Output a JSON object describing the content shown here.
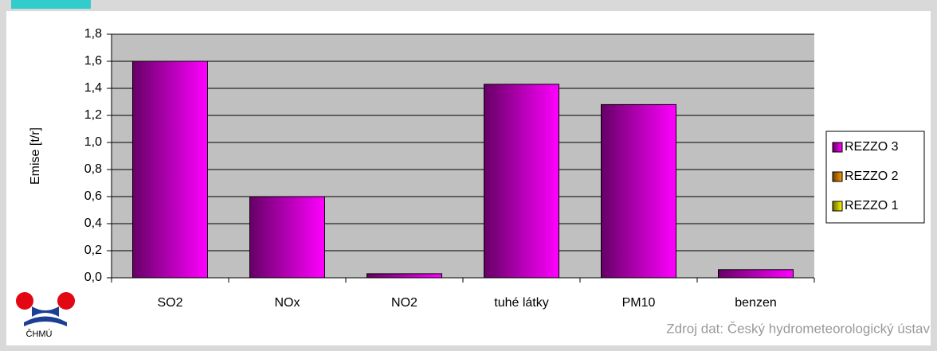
{
  "chart_data": {
    "type": "stacked_bar",
    "y_axis_label": "Emise [t/r]",
    "categories": [
      "SO2",
      "NOx",
      "NO2",
      "tuhé látky",
      "PM10",
      "benzen"
    ],
    "series": [
      {
        "name": "REZZO 3",
        "color": "#ff00ff",
        "values": [
          1.6,
          0.6,
          0.03,
          1.43,
          1.28,
          0.06
        ]
      },
      {
        "name": "REZZO 2",
        "color": "#ff9900",
        "values": [
          0,
          0,
          0,
          0,
          0,
          0
        ]
      },
      {
        "name": "REZZO 1",
        "color": "#ffff00",
        "values": [
          0,
          0,
          0,
          0,
          0,
          0
        ]
      }
    ],
    "ylim": [
      0,
      1.8
    ],
    "yticks": [
      {
        "value": 0,
        "label": "0,0"
      },
      {
        "value": 0.2,
        "label": "0,2"
      },
      {
        "value": 0.4,
        "label": "0,4"
      },
      {
        "value": 0.6,
        "label": "0,6"
      },
      {
        "value": 0.8,
        "label": "0,8"
      },
      {
        "value": 1.0,
        "label": "1,0"
      },
      {
        "value": 1.2,
        "label": "1,2"
      },
      {
        "value": 1.4,
        "label": "1,4"
      },
      {
        "value": 1.6,
        "label": "1,6"
      },
      {
        "value": 1.8,
        "label": "1,8"
      }
    ],
    "grid": true,
    "legend": "right",
    "source": "Zdroj dat: Český hydrometeorologický ústav",
    "logo_text": "ČHMÚ"
  }
}
